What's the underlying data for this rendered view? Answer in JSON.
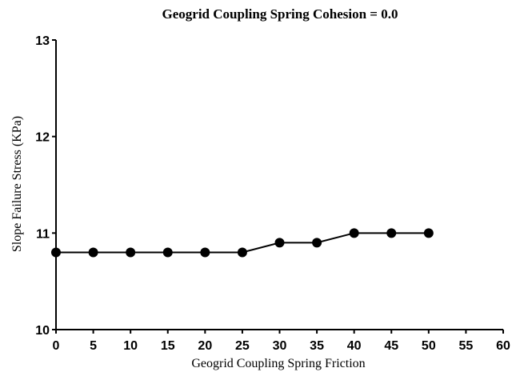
{
  "chart_data": {
    "type": "line",
    "title": "Geogrid Coupling Spring Cohesion = 0.0",
    "xlabel": "Geogrid Coupling Spring Friction",
    "ylabel": "Slope Failure Stress (KPa)",
    "xlim": [
      0,
      60
    ],
    "ylim": [
      10,
      13
    ],
    "x_ticks": [
      "0",
      "5",
      "10",
      "15",
      "20",
      "25",
      "30",
      "35",
      "40",
      "45",
      "50",
      "55",
      "60"
    ],
    "y_ticks": [
      "10",
      "11",
      "12",
      "13"
    ],
    "grid": false,
    "series": [
      {
        "color": "#000000",
        "marker": "circle",
        "points": [
          {
            "x": 0,
            "y": 10.8
          },
          {
            "x": 5,
            "y": 10.8
          },
          {
            "x": 10,
            "y": 10.8
          },
          {
            "x": 15,
            "y": 10.8
          },
          {
            "x": 20,
            "y": 10.8
          },
          {
            "x": 25,
            "y": 10.8
          },
          {
            "x": 30,
            "y": 10.9
          },
          {
            "x": 35,
            "y": 10.9
          },
          {
            "x": 40,
            "y": 11.0
          },
          {
            "x": 45,
            "y": 11.0
          },
          {
            "x": 50,
            "y": 11.0
          }
        ]
      }
    ]
  }
}
